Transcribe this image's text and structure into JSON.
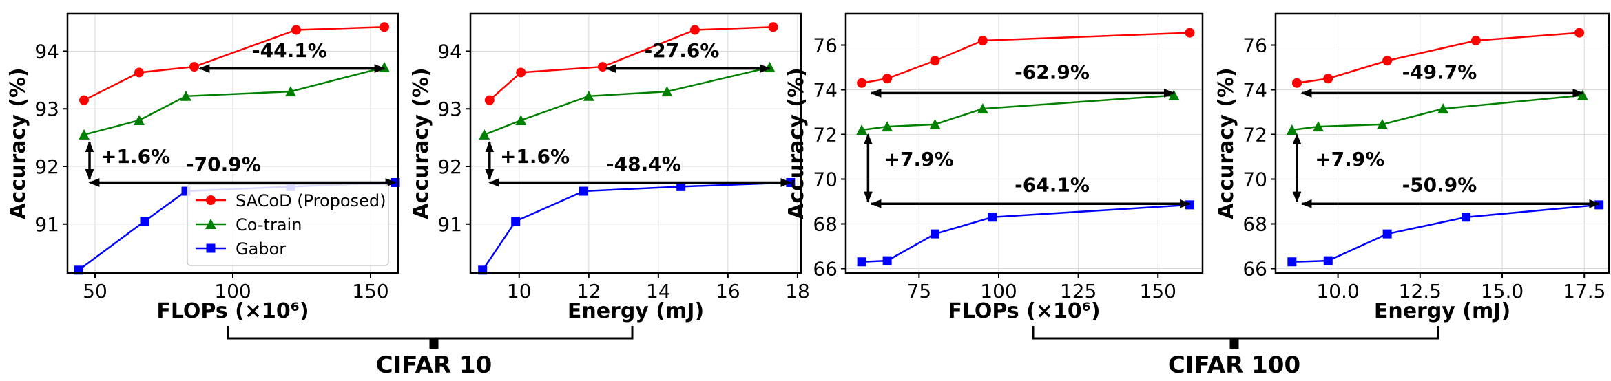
{
  "colors": {
    "SACoD (Proposed)": "#ff0000",
    "Co-train": "#008000",
    "Gabor": "#0000ff"
  },
  "legend": {
    "entries": [
      {
        "name": "SACoD (Proposed)",
        "marker": "circle"
      },
      {
        "name": "Co-train",
        "marker": "triangle"
      },
      {
        "name": "Gabor",
        "marker": "square"
      }
    ],
    "placement": "lower-right"
  },
  "groups": [
    {
      "label": "CIFAR 10",
      "panels": [
        0,
        1
      ]
    },
    {
      "label": "CIFAR 100",
      "panels": [
        2,
        3
      ]
    }
  ],
  "chart_data": [
    {
      "type": "line",
      "xlabel": "FLOPs (×10⁶)",
      "ylabel": "Accuracy (%)",
      "xlim": [
        40,
        160
      ],
      "ylim": [
        90.15,
        94.65
      ],
      "xticks": [
        50,
        100,
        150
      ],
      "yticks": [
        91,
        92,
        93,
        94
      ],
      "grid": true,
      "legend_shown": true,
      "series": [
        {
          "name": "SACoD (Proposed)",
          "x": [
            46,
            66,
            86,
            123,
            155
          ],
          "y": [
            93.15,
            93.63,
            93.73,
            94.37,
            94.42
          ]
        },
        {
          "name": "Co-train",
          "x": [
            46,
            66,
            83,
            121,
            155
          ],
          "y": [
            92.55,
            92.8,
            93.22,
            93.3,
            93.72
          ]
        },
        {
          "name": "Gabor",
          "x": [
            44,
            68,
            83,
            121,
            159
          ],
          "y": [
            90.2,
            91.05,
            91.57,
            91.65,
            91.72
          ]
        }
      ],
      "annotations": [
        {
          "text": "-44.1%",
          "type": "horizontal",
          "x1": 88,
          "x2": 155,
          "y": 93.7,
          "text_x": 107,
          "text_y": 93.9
        },
        {
          "text": "+1.6%",
          "type": "vertical",
          "x": 48,
          "y1": 92.42,
          "y2": 91.78,
          "text_x": 52,
          "text_y": 92.06
        },
        {
          "text": "-70.9%",
          "type": "horizontal",
          "x1": 48,
          "x2": 159,
          "y": 91.72,
          "text_x": 83,
          "text_y": 91.92
        }
      ]
    },
    {
      "type": "line",
      "xlabel": "Energy (mJ)",
      "ylabel": "Accuracy (%)",
      "xlim": [
        8.6,
        18.1
      ],
      "ylim": [
        90.15,
        94.65
      ],
      "xticks": [
        10,
        12,
        14,
        16,
        18
      ],
      "yticks": [
        91,
        92,
        93,
        94
      ],
      "grid": true,
      "legend_shown": false,
      "series": [
        {
          "name": "SACoD (Proposed)",
          "x": [
            9.15,
            10.05,
            12.4,
            15.05,
            17.3
          ],
          "y": [
            93.15,
            93.63,
            93.73,
            94.37,
            94.42
          ]
        },
        {
          "name": "Co-train",
          "x": [
            9.0,
            10.05,
            12.0,
            14.25,
            17.2
          ],
          "y": [
            92.55,
            92.8,
            93.22,
            93.3,
            93.72
          ]
        },
        {
          "name": "Gabor",
          "x": [
            8.95,
            9.9,
            11.85,
            14.65,
            17.8
          ],
          "y": [
            90.2,
            91.05,
            91.57,
            91.65,
            91.72
          ]
        }
      ],
      "annotations": [
        {
          "text": "-27.6%",
          "type": "horizontal",
          "x1": 12.5,
          "x2": 17.2,
          "y": 93.7,
          "text_x": 13.6,
          "text_y": 93.9
        },
        {
          "text": "+1.6%",
          "type": "vertical",
          "x": 9.15,
          "y1": 92.42,
          "y2": 91.78,
          "text_x": 9.45,
          "text_y": 92.06
        },
        {
          "text": "-48.4%",
          "type": "horizontal",
          "x1": 9.15,
          "x2": 17.8,
          "y": 91.72,
          "text_x": 12.5,
          "text_y": 91.93
        }
      ]
    },
    {
      "type": "line",
      "xlabel": "FLOPs (×10⁶)",
      "ylabel": "Accuracy (%)",
      "xlim": [
        52,
        164
      ],
      "ylim": [
        65.8,
        77.4
      ],
      "xticks": [
        75,
        100,
        125,
        150
      ],
      "yticks": [
        66,
        68,
        70,
        72,
        74,
        76
      ],
      "grid": true,
      "legend_shown": false,
      "series": [
        {
          "name": "SACoD (Proposed)",
          "x": [
            57,
            65,
            80,
            95,
            160
          ],
          "y": [
            74.3,
            74.5,
            75.3,
            76.2,
            76.55
          ]
        },
        {
          "name": "Co-train",
          "x": [
            57,
            65,
            80,
            95,
            155
          ],
          "y": [
            72.2,
            72.35,
            72.45,
            73.15,
            73.75
          ]
        },
        {
          "name": "Gabor",
          "x": [
            57,
            65,
            80,
            98,
            160
          ],
          "y": [
            66.3,
            66.35,
            67.55,
            68.3,
            68.85
          ]
        }
      ],
      "annotations": [
        {
          "text": "-62.9%",
          "type": "horizontal",
          "x1": 60,
          "x2": 155,
          "y": 73.85,
          "text_x": 105,
          "text_y": 74.5
        },
        {
          "text": "+7.9%",
          "type": "vertical",
          "x": 59,
          "y1": 72.0,
          "y2": 69.0,
          "text_x": 64,
          "text_y": 70.6
        },
        {
          "text": "-64.1%",
          "type": "horizontal",
          "x1": 60,
          "x2": 160,
          "y": 68.9,
          "text_x": 105,
          "text_y": 69.45
        }
      ]
    },
    {
      "type": "line",
      "xlabel": "Energy (mJ)",
      "ylabel": "Accuracy (%)",
      "xlim": [
        8.1,
        18.25
      ],
      "ylim": [
        65.8,
        77.4
      ],
      "xticks": [
        10.0,
        12.5,
        15.0,
        17.5
      ],
      "ytick_decimals": 1,
      "yticks": [
        66,
        68,
        70,
        72,
        74,
        76
      ],
      "grid": true,
      "legend_shown": false,
      "series": [
        {
          "name": "SACoD (Proposed)",
          "x": [
            8.75,
            9.7,
            11.5,
            14.2,
            17.35
          ],
          "y": [
            74.3,
            74.5,
            75.3,
            76.2,
            76.55
          ]
        },
        {
          "name": "Co-train",
          "x": [
            8.6,
            9.4,
            11.35,
            13.2,
            17.45
          ],
          "y": [
            72.2,
            72.35,
            72.45,
            73.15,
            73.75
          ]
        },
        {
          "name": "Gabor",
          "x": [
            8.6,
            9.7,
            11.5,
            13.9,
            17.95
          ],
          "y": [
            66.3,
            66.35,
            67.55,
            68.3,
            68.85
          ]
        }
      ],
      "annotations": [
        {
          "text": "-49.7%",
          "type": "horizontal",
          "x1": 8.9,
          "x2": 17.45,
          "y": 73.85,
          "text_x": 11.95,
          "text_y": 74.5
        },
        {
          "text": "+7.9%",
          "type": "vertical",
          "x": 8.75,
          "y1": 72.0,
          "y2": 69.0,
          "text_x": 9.3,
          "text_y": 70.6
        },
        {
          "text": "-50.9%",
          "type": "horizontal",
          "x1": 8.9,
          "x2": 17.95,
          "y": 68.9,
          "text_x": 11.95,
          "text_y": 69.45
        }
      ]
    }
  ]
}
